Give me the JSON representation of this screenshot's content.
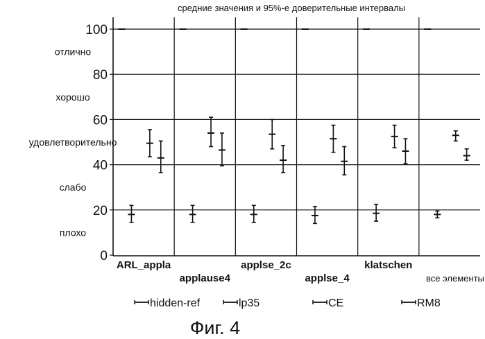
{
  "chart_data": {
    "type": "errorbar",
    "title": "средние значения и 95%-е доверительные интервалы",
    "ylim": [
      0,
      100
    ],
    "y_ticks": [
      0,
      20,
      40,
      60,
      80,
      100
    ],
    "rating_labels": [
      {
        "label": "отлично",
        "value": 90
      },
      {
        "label": "хорошо",
        "value": 70
      },
      {
        "label": "удовлетворительно",
        "value": 50
      },
      {
        "label": "слабо",
        "value": 30
      },
      {
        "label": "плохо",
        "value": 10
      }
    ],
    "categories": [
      "ARL_appla",
      "applause4",
      "applse_2c",
      "applse_4",
      "klatschen",
      "все элементы"
    ],
    "series": [
      {
        "name": "hidden-ref",
        "means": [
          100,
          100,
          100,
          100,
          100,
          100
        ],
        "lower": [
          100,
          100,
          100,
          100,
          100,
          100
        ],
        "upper": [
          100,
          100,
          100,
          100,
          100,
          100
        ]
      },
      {
        "name": "lp35",
        "means": [
          18,
          18,
          18,
          17.5,
          18.5,
          18
        ],
        "lower": [
          14.5,
          14.5,
          14.5,
          14,
          15,
          16.5
        ],
        "upper": [
          22,
          22,
          22,
          21.5,
          22.5,
          19.5
        ]
      },
      {
        "name": "CE",
        "means": [
          49.5,
          54,
          53.5,
          51.5,
          52.5,
          53
        ],
        "lower": [
          43.5,
          48,
          47,
          45.5,
          47.5,
          50.5
        ],
        "upper": [
          55.5,
          61,
          60,
          57.5,
          57.5,
          55
        ]
      },
      {
        "name": "RM8",
        "means": [
          43,
          46.5,
          42,
          41.5,
          46,
          44
        ],
        "lower": [
          36.5,
          39.5,
          36.5,
          35.5,
          40.5,
          42
        ],
        "upper": [
          50.5,
          54,
          48.5,
          48,
          51.5,
          47
        ]
      }
    ],
    "legend_position": "bottom",
    "caption": "Фиг. 4"
  }
}
